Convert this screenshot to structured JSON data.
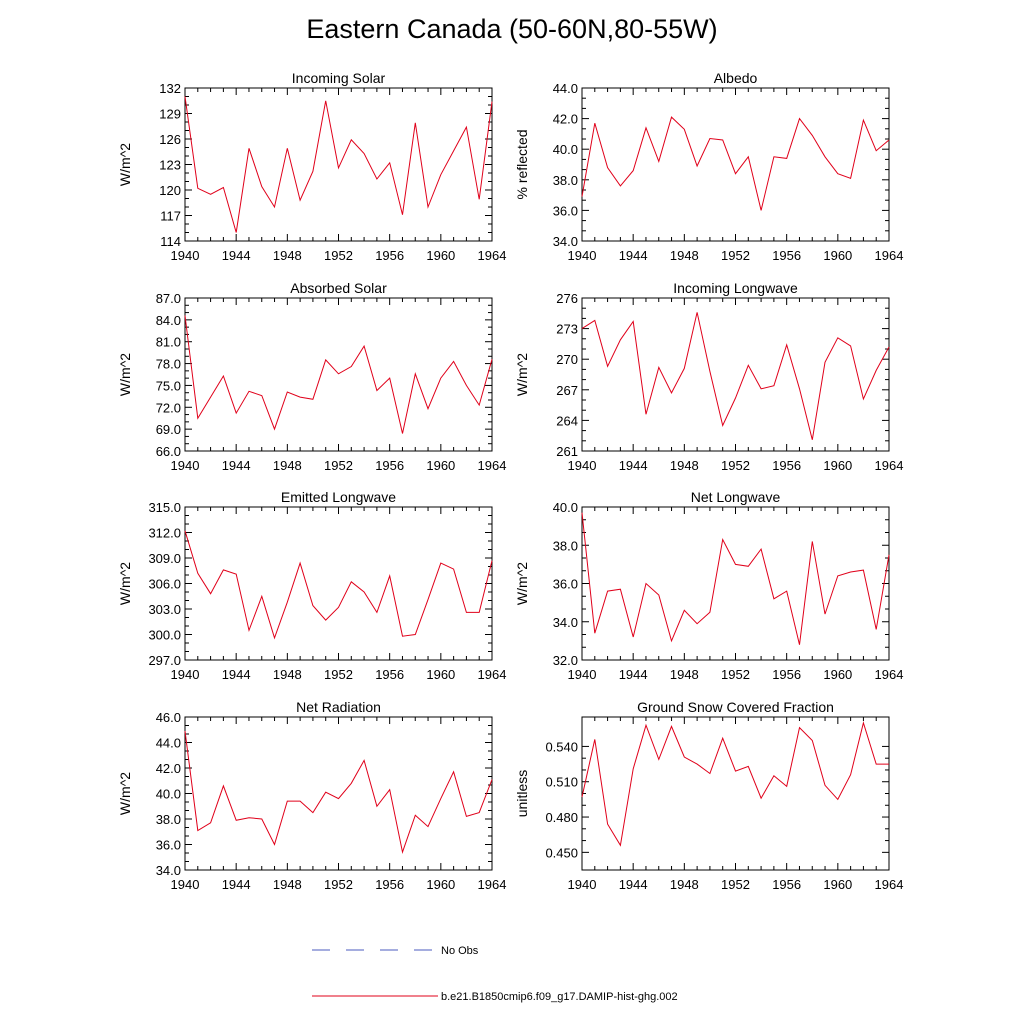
{
  "title": "Eastern Canada (50-60N,80-55W)",
  "legend": [
    {
      "label": "No Obs",
      "color": "#4b5bbf",
      "style": "dashed"
    },
    {
      "label": "b.e21.B1850cmip6.f09_g17.DAMIP-hist-ghg.002",
      "color": "#e0001a",
      "style": "solid"
    }
  ],
  "chart_data": [
    {
      "type": "line",
      "title": "Incoming Solar",
      "ylabel": "W/m^2",
      "xlim": [
        1940,
        1964
      ],
      "ylim": [
        114,
        132
      ],
      "xticks": [
        "1940",
        "1944",
        "1948",
        "1952",
        "1956",
        "1960",
        "1964"
      ],
      "yticks": [
        "114",
        "117",
        "120",
        "123",
        "126",
        "129",
        "132"
      ],
      "x": [
        1940,
        1941,
        1942,
        1943,
        1944,
        1945,
        1946,
        1947,
        1948,
        1949,
        1950,
        1951,
        1952,
        1953,
        1954,
        1955,
        1956,
        1957,
        1958,
        1959,
        1960,
        1961,
        1962,
        1963,
        1964
      ],
      "series": [
        {
          "values": [
            131.0,
            120.2,
            119.5,
            120.3,
            115.0,
            124.9,
            120.4,
            118.0,
            124.9,
            118.8,
            122.2,
            130.5,
            122.6,
            125.9,
            124.3,
            121.3,
            123.2,
            117.1,
            127.9,
            118.0,
            121.8,
            124.6,
            127.4,
            118.9,
            130.4
          ]
        }
      ]
    },
    {
      "type": "line",
      "title": "Albedo",
      "ylabel": "% reflected",
      "xlim": [
        1940,
        1964
      ],
      "ylim": [
        34.0,
        44.0
      ],
      "xticks": [
        "1940",
        "1944",
        "1948",
        "1952",
        "1956",
        "1960",
        "1964"
      ],
      "yticks": [
        "34.0",
        "36.0",
        "38.0",
        "40.0",
        "42.0",
        "44.0"
      ],
      "x": [
        1940,
        1941,
        1942,
        1943,
        1944,
        1945,
        1946,
        1947,
        1948,
        1949,
        1950,
        1951,
        1952,
        1953,
        1954,
        1955,
        1956,
        1957,
        1958,
        1959,
        1960,
        1961,
        1962,
        1963,
        1964
      ],
      "series": [
        {
          "values": [
            36.9,
            41.7,
            38.8,
            37.6,
            38.6,
            41.4,
            39.2,
            42.1,
            41.3,
            38.9,
            40.7,
            40.6,
            38.4,
            39.5,
            36.0,
            39.5,
            39.4,
            42.0,
            40.9,
            39.5,
            38.4,
            38.1,
            41.9,
            39.9,
            40.6
          ]
        }
      ]
    },
    {
      "type": "line",
      "title": "Absorbed Solar",
      "ylabel": "W/m^2",
      "xlim": [
        1940,
        1964
      ],
      "ylim": [
        66.0,
        87.0
      ],
      "xticks": [
        "1940",
        "1944",
        "1948",
        "1952",
        "1956",
        "1960",
        "1964"
      ],
      "yticks": [
        "66.0",
        "69.0",
        "72.0",
        "75.0",
        "78.0",
        "81.0",
        "84.0",
        "87.0"
      ],
      "x": [
        1940,
        1941,
        1942,
        1943,
        1944,
        1945,
        1946,
        1947,
        1948,
        1949,
        1950,
        1951,
        1952,
        1953,
        1954,
        1955,
        1956,
        1957,
        1958,
        1959,
        1960,
        1961,
        1962,
        1963,
        1964
      ],
      "series": [
        {
          "values": [
            84.6,
            70.5,
            73.4,
            76.3,
            71.2,
            74.2,
            73.6,
            69.0,
            74.1,
            73.4,
            73.1,
            78.5,
            76.6,
            77.6,
            80.4,
            74.3,
            76.0,
            68.4,
            76.6,
            71.8,
            76.0,
            78.3,
            75.0,
            72.3,
            78.6
          ]
        }
      ]
    },
    {
      "type": "line",
      "title": "Incoming Longwave",
      "ylabel": "W/m^2",
      "xlim": [
        1940,
        1964
      ],
      "ylim": [
        261,
        276
      ],
      "xticks": [
        "1940",
        "1944",
        "1948",
        "1952",
        "1956",
        "1960",
        "1964"
      ],
      "yticks": [
        "261",
        "264",
        "267",
        "270",
        "273",
        "276"
      ],
      "x": [
        1940,
        1941,
        1942,
        1943,
        1944,
        1945,
        1946,
        1947,
        1948,
        1949,
        1950,
        1951,
        1952,
        1953,
        1954,
        1955,
        1956,
        1957,
        1958,
        1959,
        1960,
        1961,
        1962,
        1963,
        1964
      ],
      "series": [
        {
          "values": [
            273.0,
            273.8,
            269.3,
            271.9,
            273.7,
            264.6,
            269.2,
            266.7,
            269.1,
            274.6,
            268.8,
            263.5,
            266.2,
            269.4,
            267.1,
            267.4,
            271.4,
            267.1,
            262.1,
            269.7,
            272.1,
            271.3,
            266.1,
            268.9,
            271.2
          ]
        }
      ]
    },
    {
      "type": "line",
      "title": "Emitted Longwave",
      "ylabel": "W/m^2",
      "xlim": [
        1940,
        1964
      ],
      "ylim": [
        297.0,
        315.0
      ],
      "xticks": [
        "1940",
        "1944",
        "1948",
        "1952",
        "1956",
        "1960",
        "1964"
      ],
      "yticks": [
        "297.0",
        "300.0",
        "303.0",
        "306.0",
        "309.0",
        "312.0",
        "315.0"
      ],
      "x": [
        1940,
        1941,
        1942,
        1943,
        1944,
        1945,
        1946,
        1947,
        1948,
        1949,
        1950,
        1951,
        1952,
        1953,
        1954,
        1955,
        1956,
        1957,
        1958,
        1959,
        1960,
        1961,
        1962,
        1963,
        1964
      ],
      "series": [
        {
          "values": [
            312.2,
            307.2,
            304.8,
            307.6,
            307.1,
            300.5,
            304.5,
            299.6,
            303.8,
            308.4,
            303.4,
            301.7,
            303.2,
            306.2,
            305.0,
            302.6,
            306.9,
            299.8,
            300.0,
            304.1,
            308.4,
            307.7,
            302.6,
            302.6,
            308.7
          ]
        }
      ]
    },
    {
      "type": "line",
      "title": "Net Longwave",
      "ylabel": "W/m^2",
      "xlim": [
        1940,
        1964
      ],
      "ylim": [
        32.0,
        40.0
      ],
      "xticks": [
        "1940",
        "1944",
        "1948",
        "1952",
        "1956",
        "1960",
        "1964"
      ],
      "yticks": [
        "32.0",
        "34.0",
        "36.0",
        "38.0",
        "40.0"
      ],
      "x": [
        1940,
        1941,
        1942,
        1943,
        1944,
        1945,
        1946,
        1947,
        1948,
        1949,
        1950,
        1951,
        1952,
        1953,
        1954,
        1955,
        1956,
        1957,
        1958,
        1959,
        1960,
        1961,
        1962,
        1963,
        1964
      ],
      "series": [
        {
          "values": [
            39.7,
            33.4,
            35.6,
            35.7,
            33.2,
            36.0,
            35.4,
            33.0,
            34.6,
            33.9,
            34.5,
            38.3,
            37.0,
            36.9,
            37.8,
            35.2,
            35.6,
            32.8,
            38.2,
            34.4,
            36.4,
            36.6,
            36.7,
            33.6,
            37.5
          ]
        }
      ]
    },
    {
      "type": "line",
      "title": "Net Radiation",
      "ylabel": "W/m^2",
      "xlim": [
        1940,
        1964
      ],
      "ylim": [
        34.0,
        46.0
      ],
      "xticks": [
        "1940",
        "1944",
        "1948",
        "1952",
        "1956",
        "1960",
        "1964"
      ],
      "yticks": [
        "34.0",
        "36.0",
        "38.0",
        "40.0",
        "42.0",
        "44.0",
        "46.0"
      ],
      "x": [
        1940,
        1941,
        1942,
        1943,
        1944,
        1945,
        1946,
        1947,
        1948,
        1949,
        1950,
        1951,
        1952,
        1953,
        1954,
        1955,
        1956,
        1957,
        1958,
        1959,
        1960,
        1961,
        1962,
        1963,
        1964
      ],
      "series": [
        {
          "values": [
            44.9,
            37.1,
            37.7,
            40.6,
            37.9,
            38.1,
            38.0,
            36.0,
            39.4,
            39.4,
            38.5,
            40.1,
            39.6,
            40.8,
            42.6,
            39.0,
            40.3,
            35.4,
            38.3,
            37.4,
            39.6,
            41.7,
            38.2,
            38.5,
            41.1
          ]
        }
      ]
    },
    {
      "type": "line",
      "title": "Ground Snow Covered Fraction",
      "ylabel": "unitless",
      "xlim": [
        1940,
        1964
      ],
      "ylim": [
        0.435,
        0.565
      ],
      "xticks": [
        "1940",
        "1944",
        "1948",
        "1952",
        "1956",
        "1960",
        "1964"
      ],
      "yticks": [
        "0.450",
        "0.480",
        "0.510",
        "0.540"
      ],
      "ytick_values": [
        0.45,
        0.48,
        0.51,
        0.54
      ],
      "x": [
        1940,
        1941,
        1942,
        1943,
        1944,
        1945,
        1946,
        1947,
        1948,
        1949,
        1950,
        1951,
        1952,
        1953,
        1954,
        1955,
        1956,
        1957,
        1958,
        1959,
        1960,
        1961,
        1962,
        1963,
        1964
      ],
      "series": [
        {
          "values": [
            0.497,
            0.546,
            0.474,
            0.456,
            0.521,
            0.558,
            0.529,
            0.557,
            0.531,
            0.525,
            0.517,
            0.547,
            0.519,
            0.523,
            0.496,
            0.515,
            0.506,
            0.556,
            0.545,
            0.507,
            0.495,
            0.516,
            0.56,
            0.525,
            0.525
          ]
        }
      ]
    }
  ]
}
